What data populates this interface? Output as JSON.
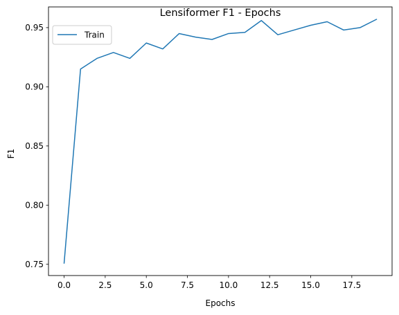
{
  "chart_data": {
    "type": "line",
    "title": "Lensiformer F1 - Epochs",
    "xlabel": "Epochs",
    "ylabel": "F1",
    "x_ticks": [
      "0.0",
      "2.5",
      "5.0",
      "7.5",
      "10.0",
      "12.5",
      "15.0",
      "17.5"
    ],
    "y_ticks": [
      "0.75",
      "0.80",
      "0.85",
      "0.90",
      "0.95"
    ],
    "xlim": [
      -0.95,
      19.95
    ],
    "ylim": [
      0.7405,
      0.9675
    ],
    "grid": false,
    "legend_position": "top-left",
    "series": [
      {
        "name": "Train",
        "color": "#1f77b4",
        "x": [
          0,
          1,
          2,
          3,
          4,
          5,
          6,
          7,
          8,
          9,
          10,
          11,
          12,
          13,
          14,
          15,
          16,
          17,
          18,
          19
        ],
        "y": [
          0.751,
          0.915,
          0.924,
          0.929,
          0.924,
          0.937,
          0.932,
          0.945,
          0.942,
          0.94,
          0.945,
          0.946,
          0.956,
          0.944,
          0.948,
          0.952,
          0.955,
          0.948,
          0.95,
          0.957
        ]
      }
    ]
  }
}
